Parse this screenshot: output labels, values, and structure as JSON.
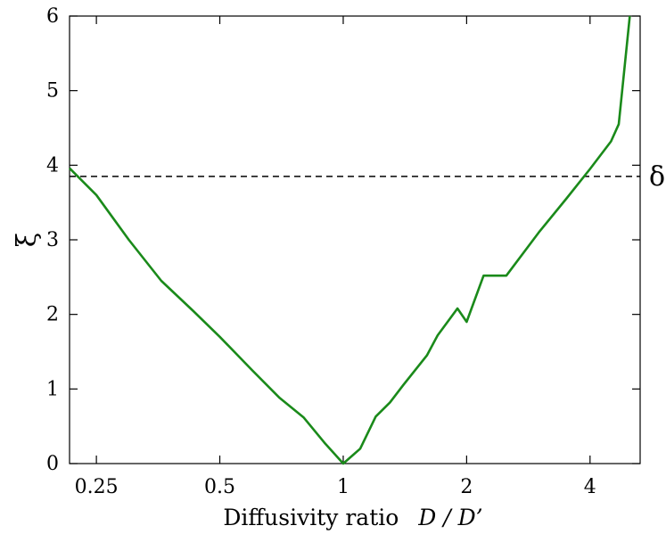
{
  "chart_data": {
    "type": "line",
    "xlabel_text": "Diffusivity ratio",
    "xlabel_symbol": "D / D’",
    "ylabel": "ξ",
    "x_scale": "log",
    "xlim": [
      0.215,
      5.3
    ],
    "ylim": [
      0,
      6
    ],
    "x_ticks": [
      0.25,
      0.5,
      1,
      2,
      4
    ],
    "x_tick_labels": [
      "0.25",
      "0.5",
      "1",
      "2",
      "4"
    ],
    "y_ticks": [
      0,
      1,
      2,
      3,
      4,
      5,
      6
    ],
    "y_tick_labels": [
      "0",
      "1",
      "2",
      "3",
      "4",
      "5",
      "6"
    ],
    "grid": false,
    "reference_line": {
      "y": 3.85,
      "label": "δ",
      "style": "dashed",
      "color": "#000000"
    },
    "series": [
      {
        "color": "#1a8a1a",
        "x": [
          0.215,
          0.25,
          0.3,
          0.36,
          0.43,
          0.5,
          0.6,
          0.7,
          0.8,
          0.9,
          1.0,
          1.1,
          1.2,
          1.3,
          1.4,
          1.6,
          1.7,
          1.9,
          2.0,
          2.2,
          2.5,
          3.0,
          3.5,
          4.0,
          4.5,
          4.7,
          5.0
        ],
        "y": [
          3.96,
          3.6,
          3.0,
          2.45,
          2.05,
          1.7,
          1.25,
          0.88,
          0.62,
          0.28,
          0.0,
          0.2,
          0.63,
          0.82,
          1.05,
          1.45,
          1.72,
          2.08,
          1.9,
          2.52,
          2.52,
          3.1,
          3.55,
          3.95,
          4.32,
          4.55,
          6.0
        ]
      }
    ]
  }
}
